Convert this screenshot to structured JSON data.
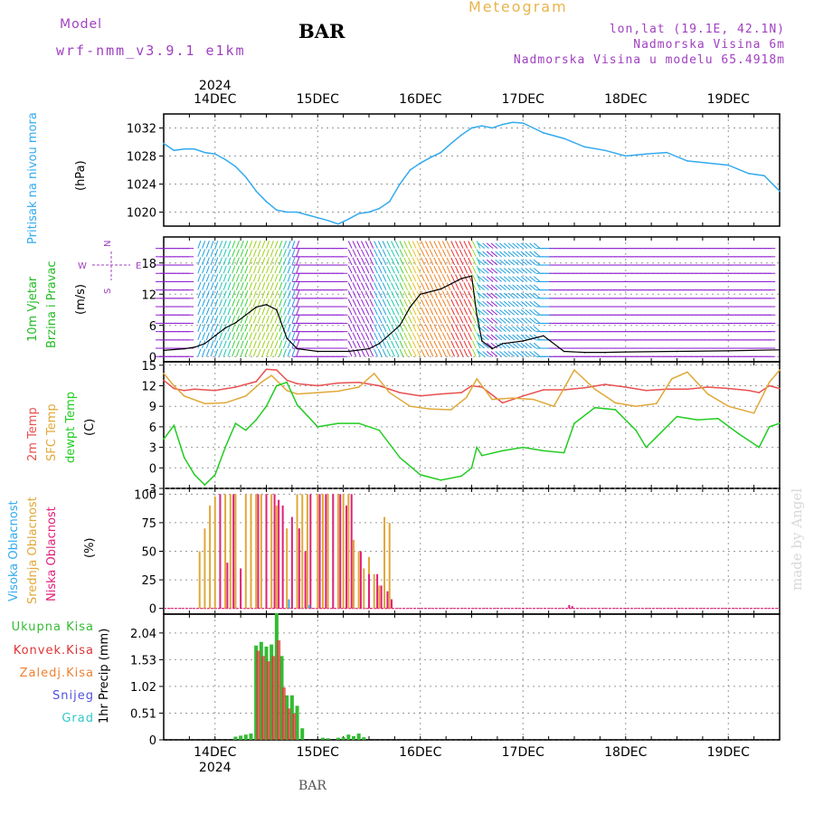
{
  "header": {
    "model_label": "Model",
    "model_value": "wrf-nmm_v3.9.1 e1km",
    "title": "BAR",
    "app_title": "Meteogram",
    "lonlat": "lon,lat (19.1E, 42.1N)",
    "elevation": "Nadmorska Visina 6m",
    "model_elevation": "Nadmorska Visina u modelu 65.4918m"
  },
  "footer": {
    "station": "BAR",
    "credit": "made by Angel"
  },
  "time_axis": {
    "year": "2024",
    "days": [
      "14DEC",
      "15DEC",
      "16DEC",
      "17DEC",
      "18DEC",
      "19DEC"
    ],
    "range_days": [
      13.5,
      19.5
    ]
  },
  "colors": {
    "pressure": "#33aaee",
    "temp2m": "#e85050",
    "sfc": "#e0a838",
    "dewpt": "#22cc22",
    "visoka": "#33aaee",
    "srednja": "#e0a838",
    "niska": "#e0207a",
    "ukupna": "#33bb33",
    "konvek": "#dd3333",
    "zaledj": "#f08030",
    "snijeg": "#5050e0",
    "grad": "#30c8c8",
    "wind_text": "#22bb22",
    "wind_dir": "#a040c0"
  },
  "chart_data": [
    {
      "type": "line",
      "ylabel": "Pritisak na nivou mora",
      "unit": "(hPa)",
      "yticks": [
        1020,
        1024,
        1028,
        1032
      ],
      "ylim": [
        1018,
        1034
      ],
      "grid": true,
      "series": [
        {
          "x": [
            13.5,
            13.6,
            13.7,
            13.8,
            13.9,
            14.0,
            14.1,
            14.2,
            14.3,
            14.4,
            14.5,
            14.6,
            14.7,
            14.8,
            14.9,
            15.0,
            15.1,
            15.2,
            15.3,
            15.4,
            15.5,
            15.6,
            15.7,
            15.8,
            15.9,
            16.0,
            16.1,
            16.2,
            16.3,
            16.4,
            16.5,
            16.6,
            16.7,
            16.8,
            16.9,
            17.0,
            17.1,
            17.2,
            17.4,
            17.6,
            17.8,
            18.0,
            18.2,
            18.4,
            18.6,
            18.8,
            19.0,
            19.2,
            19.35,
            19.5
          ],
          "y": [
            1029.8,
            1028.8,
            1029.0,
            1029.0,
            1028.5,
            1028.3,
            1027.5,
            1026.5,
            1025.0,
            1023.0,
            1021.5,
            1020.3,
            1020.0,
            1020.0,
            1019.6,
            1019.2,
            1018.8,
            1018.3,
            1019.0,
            1019.8,
            1020.0,
            1020.5,
            1021.5,
            1024.0,
            1026.0,
            1027.0,
            1027.8,
            1028.5,
            1029.8,
            1031.0,
            1032.0,
            1032.3,
            1032.0,
            1032.5,
            1032.8,
            1032.7,
            1032.0,
            1031.3,
            1030.5,
            1029.3,
            1028.8,
            1028.0,
            1028.3,
            1028.5,
            1027.3,
            1027.0,
            1026.7,
            1025.5,
            1025.2,
            1023.0
          ]
        }
      ]
    },
    {
      "type": "line",
      "ylabel": "10m Vjetar Brzina i Pravac",
      "unit": "(m/s)",
      "yticks": [
        0,
        6,
        12,
        18
      ],
      "ylim": [
        -1,
        23
      ],
      "grid": true,
      "compass": {
        "north": "N",
        "west": "W",
        "east": "E",
        "south": "S"
      },
      "series": [
        {
          "x": [
            13.5,
            13.7,
            13.8,
            13.9,
            14.0,
            14.1,
            14.2,
            14.3,
            14.4,
            14.5,
            14.6,
            14.7,
            14.8,
            15.0,
            15.3,
            15.5,
            15.6,
            15.8,
            15.9,
            16.0,
            16.2,
            16.3,
            16.4,
            16.5,
            16.55,
            16.6,
            16.7,
            16.8,
            17.0,
            17.2,
            17.4,
            17.6,
            17.8,
            18.0,
            18.5,
            19.0,
            19.5
          ],
          "y": [
            1.2,
            1.5,
            1.8,
            2.5,
            4.0,
            5.5,
            6.5,
            8.0,
            9.5,
            10.0,
            9.0,
            3.5,
            1.5,
            1.0,
            1.0,
            1.5,
            2.5,
            6.0,
            9.5,
            12.0,
            13.0,
            14.0,
            15.0,
            15.5,
            8.0,
            3.0,
            1.5,
            2.5,
            3.0,
            4.0,
            1.0,
            0.8,
            0.8,
            0.9,
            1.0,
            1.1,
            1.3
          ]
        }
      ]
    },
    {
      "type": "line",
      "ylabel": "2m Temp / SFC Temp / dewpt Temp",
      "unit": "(C)",
      "yticks": [
        -3,
        0,
        3,
        6,
        9,
        12,
        15
      ],
      "ylim": [
        -3,
        15.5
      ],
      "grid": true,
      "series": [
        {
          "name": "2m Temp",
          "x": [
            13.5,
            13.6,
            13.7,
            13.8,
            14.0,
            14.2,
            14.4,
            14.5,
            14.6,
            14.7,
            14.8,
            15.0,
            15.2,
            15.4,
            15.6,
            15.8,
            16.0,
            16.2,
            16.4,
            16.5,
            16.6,
            16.8,
            17.0,
            17.2,
            17.4,
            17.6,
            17.8,
            18.0,
            18.2,
            18.4,
            18.6,
            18.8,
            19.0,
            19.2,
            19.3,
            19.4,
            19.5
          ],
          "y": [
            12.8,
            11.6,
            11.3,
            11.5,
            11.3,
            11.8,
            12.6,
            14.4,
            14.3,
            12.8,
            12.3,
            12.0,
            12.4,
            12.5,
            12.0,
            11.0,
            10.5,
            10.8,
            11.0,
            12.0,
            11.8,
            9.5,
            10.5,
            11.4,
            11.4,
            11.7,
            12.2,
            11.8,
            11.3,
            11.5,
            11.5,
            11.8,
            11.6,
            11.3,
            11.0,
            12.0,
            11.6
          ]
        },
        {
          "name": "SFC Temp",
          "x": [
            13.5,
            13.6,
            13.7,
            13.9,
            14.1,
            14.3,
            14.45,
            14.55,
            14.7,
            14.8,
            15.0,
            15.2,
            15.4,
            15.55,
            15.7,
            15.9,
            16.1,
            16.3,
            16.45,
            16.55,
            16.7,
            16.9,
            17.1,
            17.3,
            17.5,
            17.7,
            17.9,
            18.1,
            18.3,
            18.45,
            18.6,
            18.8,
            19.0,
            19.25,
            19.4,
            19.5
          ],
          "y": [
            13.8,
            12.0,
            10.5,
            9.4,
            9.5,
            10.5,
            12.5,
            13.5,
            11.3,
            10.8,
            11.0,
            11.2,
            11.8,
            13.8,
            11.0,
            9.0,
            8.6,
            8.5,
            10.3,
            13.0,
            10.0,
            10.2,
            10.0,
            9.0,
            14.3,
            11.5,
            9.5,
            9.0,
            9.4,
            13.0,
            14.0,
            10.8,
            9.0,
            8.0,
            12.5,
            14.3
          ]
        },
        {
          "name": "dewpt Temp",
          "x": [
            13.5,
            13.6,
            13.7,
            13.8,
            13.9,
            14.0,
            14.1,
            14.2,
            14.3,
            14.4,
            14.5,
            14.6,
            14.7,
            14.8,
            15.0,
            15.2,
            15.4,
            15.6,
            15.8,
            16.0,
            16.2,
            16.4,
            16.5,
            16.55,
            16.6,
            16.8,
            17.0,
            17.2,
            17.4,
            17.5,
            17.7,
            17.9,
            18.1,
            18.2,
            18.3,
            18.5,
            18.7,
            18.9,
            19.1,
            19.3,
            19.4,
            19.5
          ],
          "y": [
            4.2,
            6.2,
            1.5,
            -1.0,
            -2.5,
            -1.0,
            3.0,
            6.5,
            5.5,
            7.0,
            9.0,
            12.0,
            12.5,
            9.2,
            6.0,
            6.5,
            6.5,
            5.5,
            1.5,
            -1.0,
            -1.8,
            -1.2,
            0.0,
            3.0,
            1.8,
            2.5,
            3.0,
            2.5,
            2.2,
            6.5,
            8.8,
            8.5,
            5.5,
            3.0,
            4.5,
            7.5,
            7.0,
            7.2,
            5.0,
            3.0,
            6.0,
            6.5
          ]
        }
      ]
    },
    {
      "type": "bar",
      "ylabel": "Visoka Oblacnost / Srednja Oblacnost / Niska Oblacnost",
      "unit": "(%)",
      "yticks": [
        0,
        25,
        50,
        75,
        100
      ],
      "ylim": [
        -5,
        105
      ],
      "grid": true,
      "series": [
        {
          "name": "Srednja Oblacnost",
          "x": [
            13.85,
            13.9,
            13.95,
            14.0,
            14.1,
            14.15,
            14.2,
            14.3,
            14.35,
            14.4,
            14.45,
            14.5,
            14.55,
            14.6,
            14.7,
            14.8,
            14.85,
            14.9,
            15.0,
            15.05,
            15.1,
            15.2,
            15.25,
            15.3,
            15.35,
            15.4,
            15.45,
            15.5,
            15.55,
            15.6,
            15.65,
            15.7
          ],
          "y": [
            50,
            70,
            90,
            98,
            100,
            100,
            100,
            100,
            100,
            100,
            100,
            100,
            100,
            90,
            70,
            100,
            100,
            100,
            100,
            100,
            100,
            100,
            100,
            100,
            60,
            50,
            35,
            45,
            30,
            20,
            80,
            75
          ]
        },
        {
          "name": "Niska Oblacnost",
          "x": [
            14.05,
            14.12,
            14.18,
            14.25,
            14.42,
            14.5,
            14.58,
            14.62,
            14.66,
            14.75,
            14.82,
            14.88,
            14.93,
            15.02,
            15.08,
            15.15,
            15.22,
            15.28,
            15.33,
            15.42,
            15.5,
            15.58,
            15.62,
            15.68,
            15.72,
            17.45,
            17.48
          ],
          "y": [
            100,
            40,
            100,
            35,
            100,
            100,
            100,
            95,
            90,
            80,
            70,
            50,
            100,
            100,
            100,
            100,
            100,
            90,
            100,
            50,
            30,
            30,
            20,
            15,
            8,
            3,
            2
          ]
        },
        {
          "name": "Visoka Oblacnost",
          "x": [
            14.72,
            14.92
          ],
          "y": [
            8,
            3
          ]
        }
      ]
    },
    {
      "type": "bar",
      "ylabel": "1hr Precip (mm)",
      "unit": "1hr Precip (mm)",
      "yticks": [
        0,
        0.51,
        1.02,
        1.53,
        2.04
      ],
      "ylim": [
        0,
        2.4
      ],
      "grid": true,
      "series": [
        {
          "name": "Ukupna Kisa",
          "x": [
            14.2,
            14.25,
            14.3,
            14.35,
            14.4,
            14.45,
            14.5,
            14.55,
            14.6,
            14.65,
            14.7,
            14.75,
            14.8,
            14.85,
            15.05,
            15.1,
            15.2,
            15.25,
            15.3,
            15.35,
            15.4,
            15.45
          ],
          "y": [
            0.06,
            0.08,
            0.1,
            0.12,
            1.8,
            1.87,
            1.78,
            1.82,
            2.42,
            1.6,
            0.85,
            0.85,
            0.65,
            0.22,
            0.04,
            0.03,
            0.04,
            0.05,
            0.1,
            0.07,
            0.12,
            0.05
          ]
        },
        {
          "name": "Konvek.Kisa",
          "x": [
            14.42,
            14.47,
            14.52,
            14.57,
            14.62,
            14.67,
            14.72,
            14.77
          ],
          "y": [
            1.7,
            1.6,
            1.5,
            1.6,
            1.9,
            1.0,
            0.6,
            0.5
          ]
        }
      ]
    }
  ],
  "panel_labels": {
    "p1_title": "Pritisak na nivou mora",
    "p1_unit": "(hPa)",
    "p2_title_a": "10m Vjetar",
    "p2_title_b": "Brzina i Pravac",
    "p2_unit": "(m/s)",
    "p3_a": "2m Temp",
    "p3_b": "SFC Temp",
    "p3_c": "dewpt Temp",
    "p3_unit": "(C)",
    "p4_a": "Visoka Oblacnost",
    "p4_b": "Srednja Oblacnost",
    "p4_c": "Niska Oblacnost",
    "p4_unit": "(%)",
    "p5_unit": "1hr Precip (mm)"
  },
  "precip_legend": [
    "Ukupna Kisa",
    "Konvek.Kisa",
    "Zaledj.Kisa",
    "Snijeg",
    "Grad"
  ]
}
